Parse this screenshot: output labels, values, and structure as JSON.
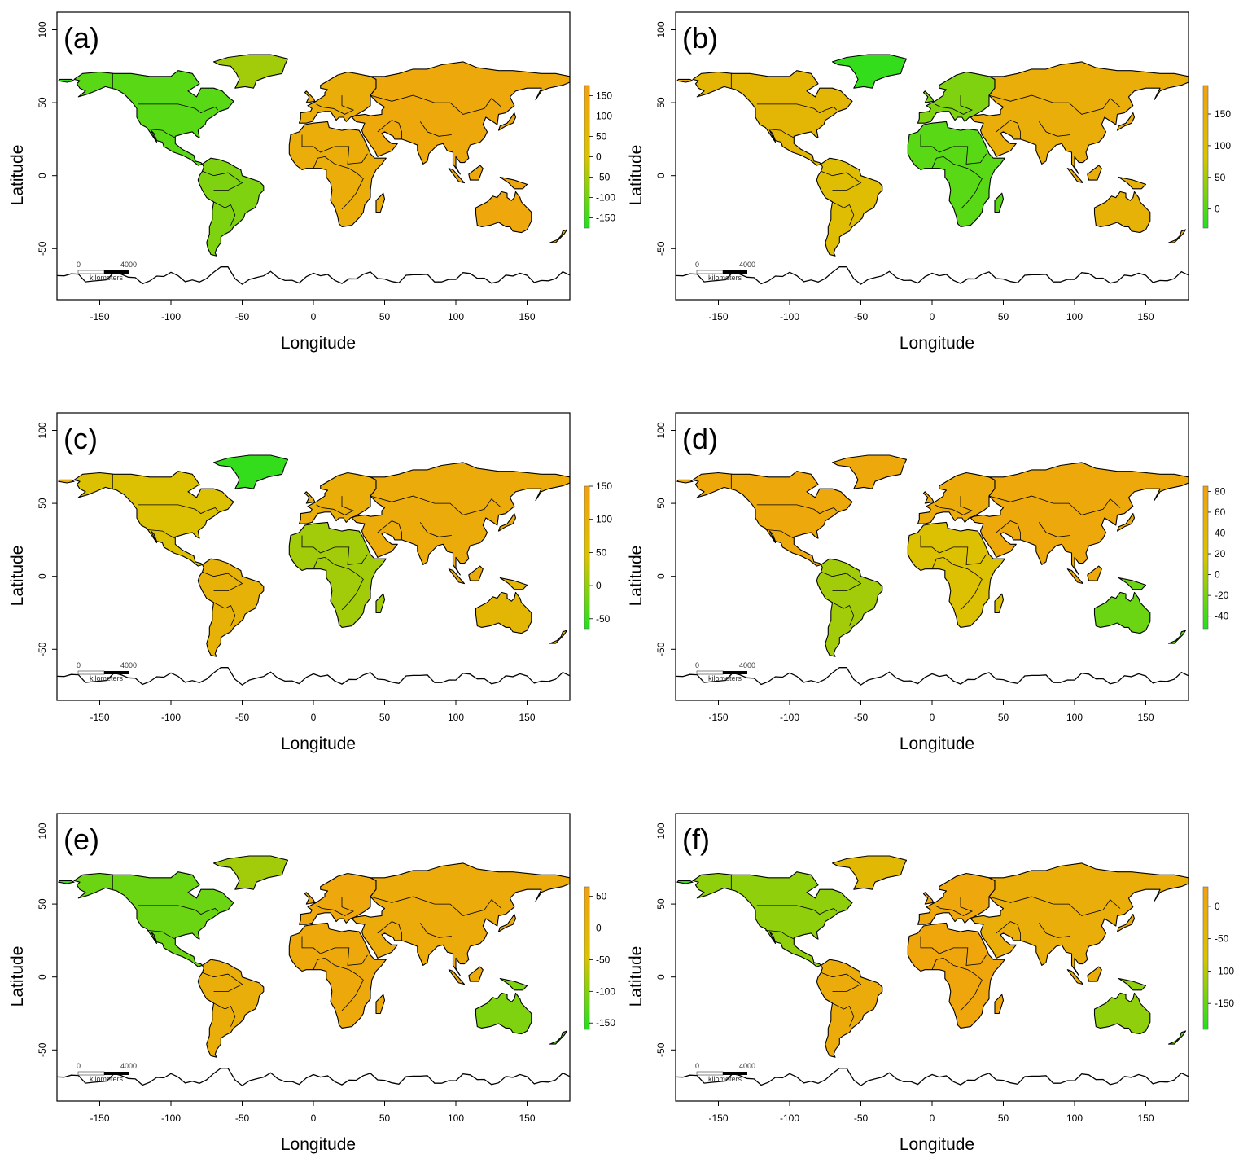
{
  "figure": {
    "x_axis_title": "Longitude",
    "y_axis_title": "Latitude",
    "x_ticks": [
      "-150",
      "-100",
      "-50",
      "0",
      "50",
      "100",
      "150"
    ],
    "x_tick_values": [
      -150,
      -100,
      -50,
      0,
      50,
      100,
      150
    ],
    "y_ticks": [
      "100",
      "50",
      "0",
      "-50"
    ],
    "y_tick_values": [
      100,
      50,
      0,
      -50
    ],
    "x_range": [
      -180,
      180
    ],
    "y_range": [
      -85,
      112
    ],
    "scale_bar": {
      "start": "0",
      "end": "4000",
      "unit": "kilometers"
    },
    "colors": {
      "low": "#22e01f",
      "mid": "#d9c400",
      "high": "#f3a00f"
    }
  },
  "panels": [
    {
      "label": "(a)",
      "colorbar": {
        "ticks": [
          "150",
          "100",
          "50",
          "0",
          "-50",
          "-100",
          "-150"
        ],
        "tick_values": [
          150,
          100,
          50,
          0,
          -50,
          -100,
          -150
        ],
        "range": [
          -175,
          175
        ]
      },
      "fills": {
        "northamerica": 0.15,
        "greenland": 0.35,
        "southamerica": 0.25,
        "europe": 0.8,
        "africa": 0.82,
        "asia": 0.88,
        "australia": 0.9,
        "newzealand": 0.95,
        "alaska_tip": 0.05
      }
    },
    {
      "label": "(b)",
      "colorbar": {
        "ticks": [
          "150",
          "100",
          "50",
          "0"
        ],
        "tick_values": [
          150,
          100,
          50,
          0
        ],
        "range": [
          -30,
          195
        ]
      },
      "fills": {
        "northamerica": 0.7,
        "greenland": 0.05,
        "southamerica": 0.6,
        "europe": 0.25,
        "africa": 0.15,
        "asia": 0.8,
        "australia": 0.75,
        "newzealand": 0.85,
        "alaska_tip": 0.85
      }
    },
    {
      "label": "(c)",
      "colorbar": {
        "ticks": [
          "150",
          "100",
          "50",
          "0",
          "-50"
        ],
        "tick_values": [
          150,
          100,
          50,
          0,
          -50
        ],
        "range": [
          -65,
          150
        ]
      },
      "fills": {
        "northamerica": 0.55,
        "greenland": 0.05,
        "southamerica": 0.75,
        "europe": 0.8,
        "africa": 0.35,
        "asia": 0.85,
        "australia": 0.7,
        "newzealand": 0.85,
        "alaska_tip": 0.85
      }
    },
    {
      "label": "(d)",
      "colorbar": {
        "ticks": [
          "80",
          "60",
          "40",
          "20",
          "0",
          "-20",
          "-40"
        ],
        "tick_values": [
          80,
          60,
          40,
          20,
          0,
          -20,
          -40
        ],
        "range": [
          -52,
          85
        ]
      },
      "fills": {
        "northamerica": 0.88,
        "greenland": 0.88,
        "southamerica": 0.35,
        "europe": 0.85,
        "africa": 0.55,
        "asia": 0.88,
        "australia": 0.2,
        "newzealand": 0.15,
        "alaska_tip": 0.9
      }
    },
    {
      "label": "(e)",
      "colorbar": {
        "ticks": [
          "50",
          "0",
          "-50",
          "-100",
          "-150"
        ],
        "tick_values": [
          50,
          0,
          -50,
          -100,
          -150
        ],
        "range": [
          -160,
          65
        ]
      },
      "fills": {
        "northamerica": 0.2,
        "greenland": 0.35,
        "southamerica": 0.8,
        "europe": 0.9,
        "africa": 0.88,
        "asia": 0.85,
        "australia": 0.25,
        "newzealand": 0.1,
        "alaska_tip": 0.05
      }
    },
    {
      "label": "(f)",
      "colorbar": {
        "ticks": [
          "0",
          "-50",
          "-100",
          "-150"
        ],
        "tick_values": [
          0,
          -50,
          -100,
          -150
        ],
        "range": [
          -190,
          30
        ]
      },
      "fills": {
        "northamerica": 0.3,
        "greenland": 0.65,
        "southamerica": 0.85,
        "europe": 0.9,
        "africa": 0.92,
        "asia": 0.8,
        "australia": 0.3,
        "newzealand": 0.2,
        "alaska_tip": 0.05
      }
    }
  ]
}
